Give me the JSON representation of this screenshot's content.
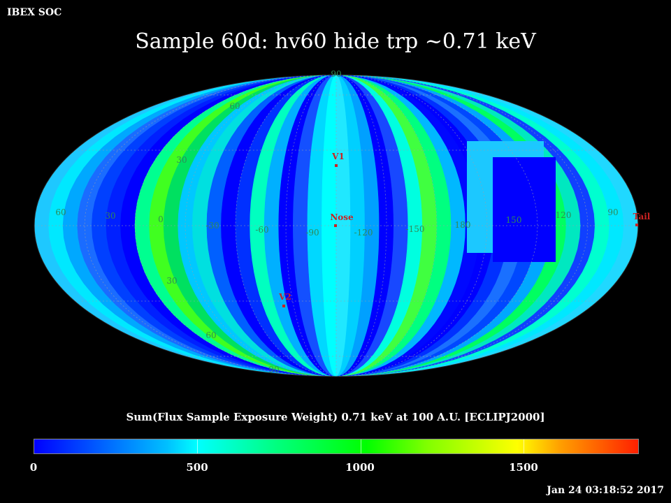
{
  "header": {
    "corner_label": "IBEX SOC",
    "title": "Sample 60d: hv60 hide trp ~0.71 keV"
  },
  "map": {
    "projection": "Aitoff/Mollweide equal-area (ecliptic J2000)",
    "longitude_labels": [
      "60",
      "30",
      "0",
      "-30",
      "-60",
      "-90",
      "-120",
      "-150",
      "180",
      "150",
      "120",
      "90"
    ],
    "latitude_labels": [
      "90",
      "60",
      "30",
      "30",
      "60",
      "90"
    ],
    "markers": [
      {
        "name": "V1",
        "color": "#cc2222"
      },
      {
        "name": "Nose",
        "color": "#cc2222"
      },
      {
        "name": "V2",
        "color": "#cc2222"
      },
      {
        "name": "Tail",
        "color": "#cc2222"
      }
    ],
    "grid_color": "#9aa0aa",
    "label_color": "#2e8b57"
  },
  "colorbar": {
    "title": "Sum(Flux Sample Exposure Weight)  0.71 keV at 100 A.U. [ECLIPJ2000]",
    "labels": [
      "0",
      "500",
      "1000",
      "1500"
    ],
    "range": [
      0,
      1850
    ]
  },
  "footer": {
    "timestamp": "Jan 24 03:18:52 2017"
  }
}
